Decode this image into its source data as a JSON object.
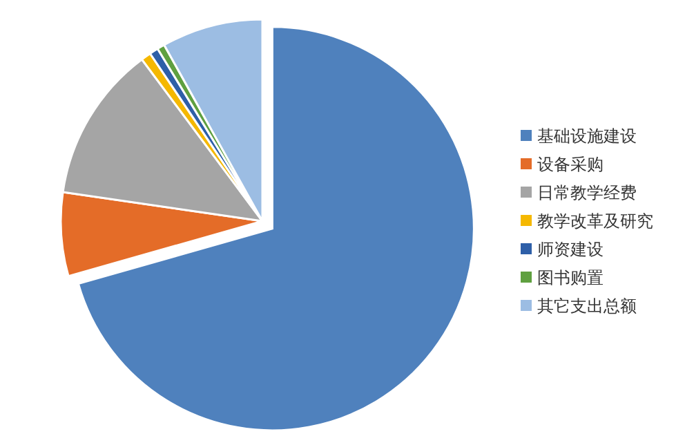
{
  "chart_data": {
    "type": "pie",
    "categories": [
      "基础设施建设",
      "设备采购",
      "日常教学经费",
      "教学改革及研究",
      "师资建设",
      "图书购置",
      "其它支出总额"
    ],
    "values": [
      70.6,
      6.7,
      12.5,
      0.8,
      0.7,
      0.6,
      8.1
    ],
    "colors": [
      "#4f81bd",
      "#e46c28",
      "#a5a5a5",
      "#f5b800",
      "#2e5fa8",
      "#5fa040",
      "#9cbde3"
    ],
    "legend": "right"
  }
}
